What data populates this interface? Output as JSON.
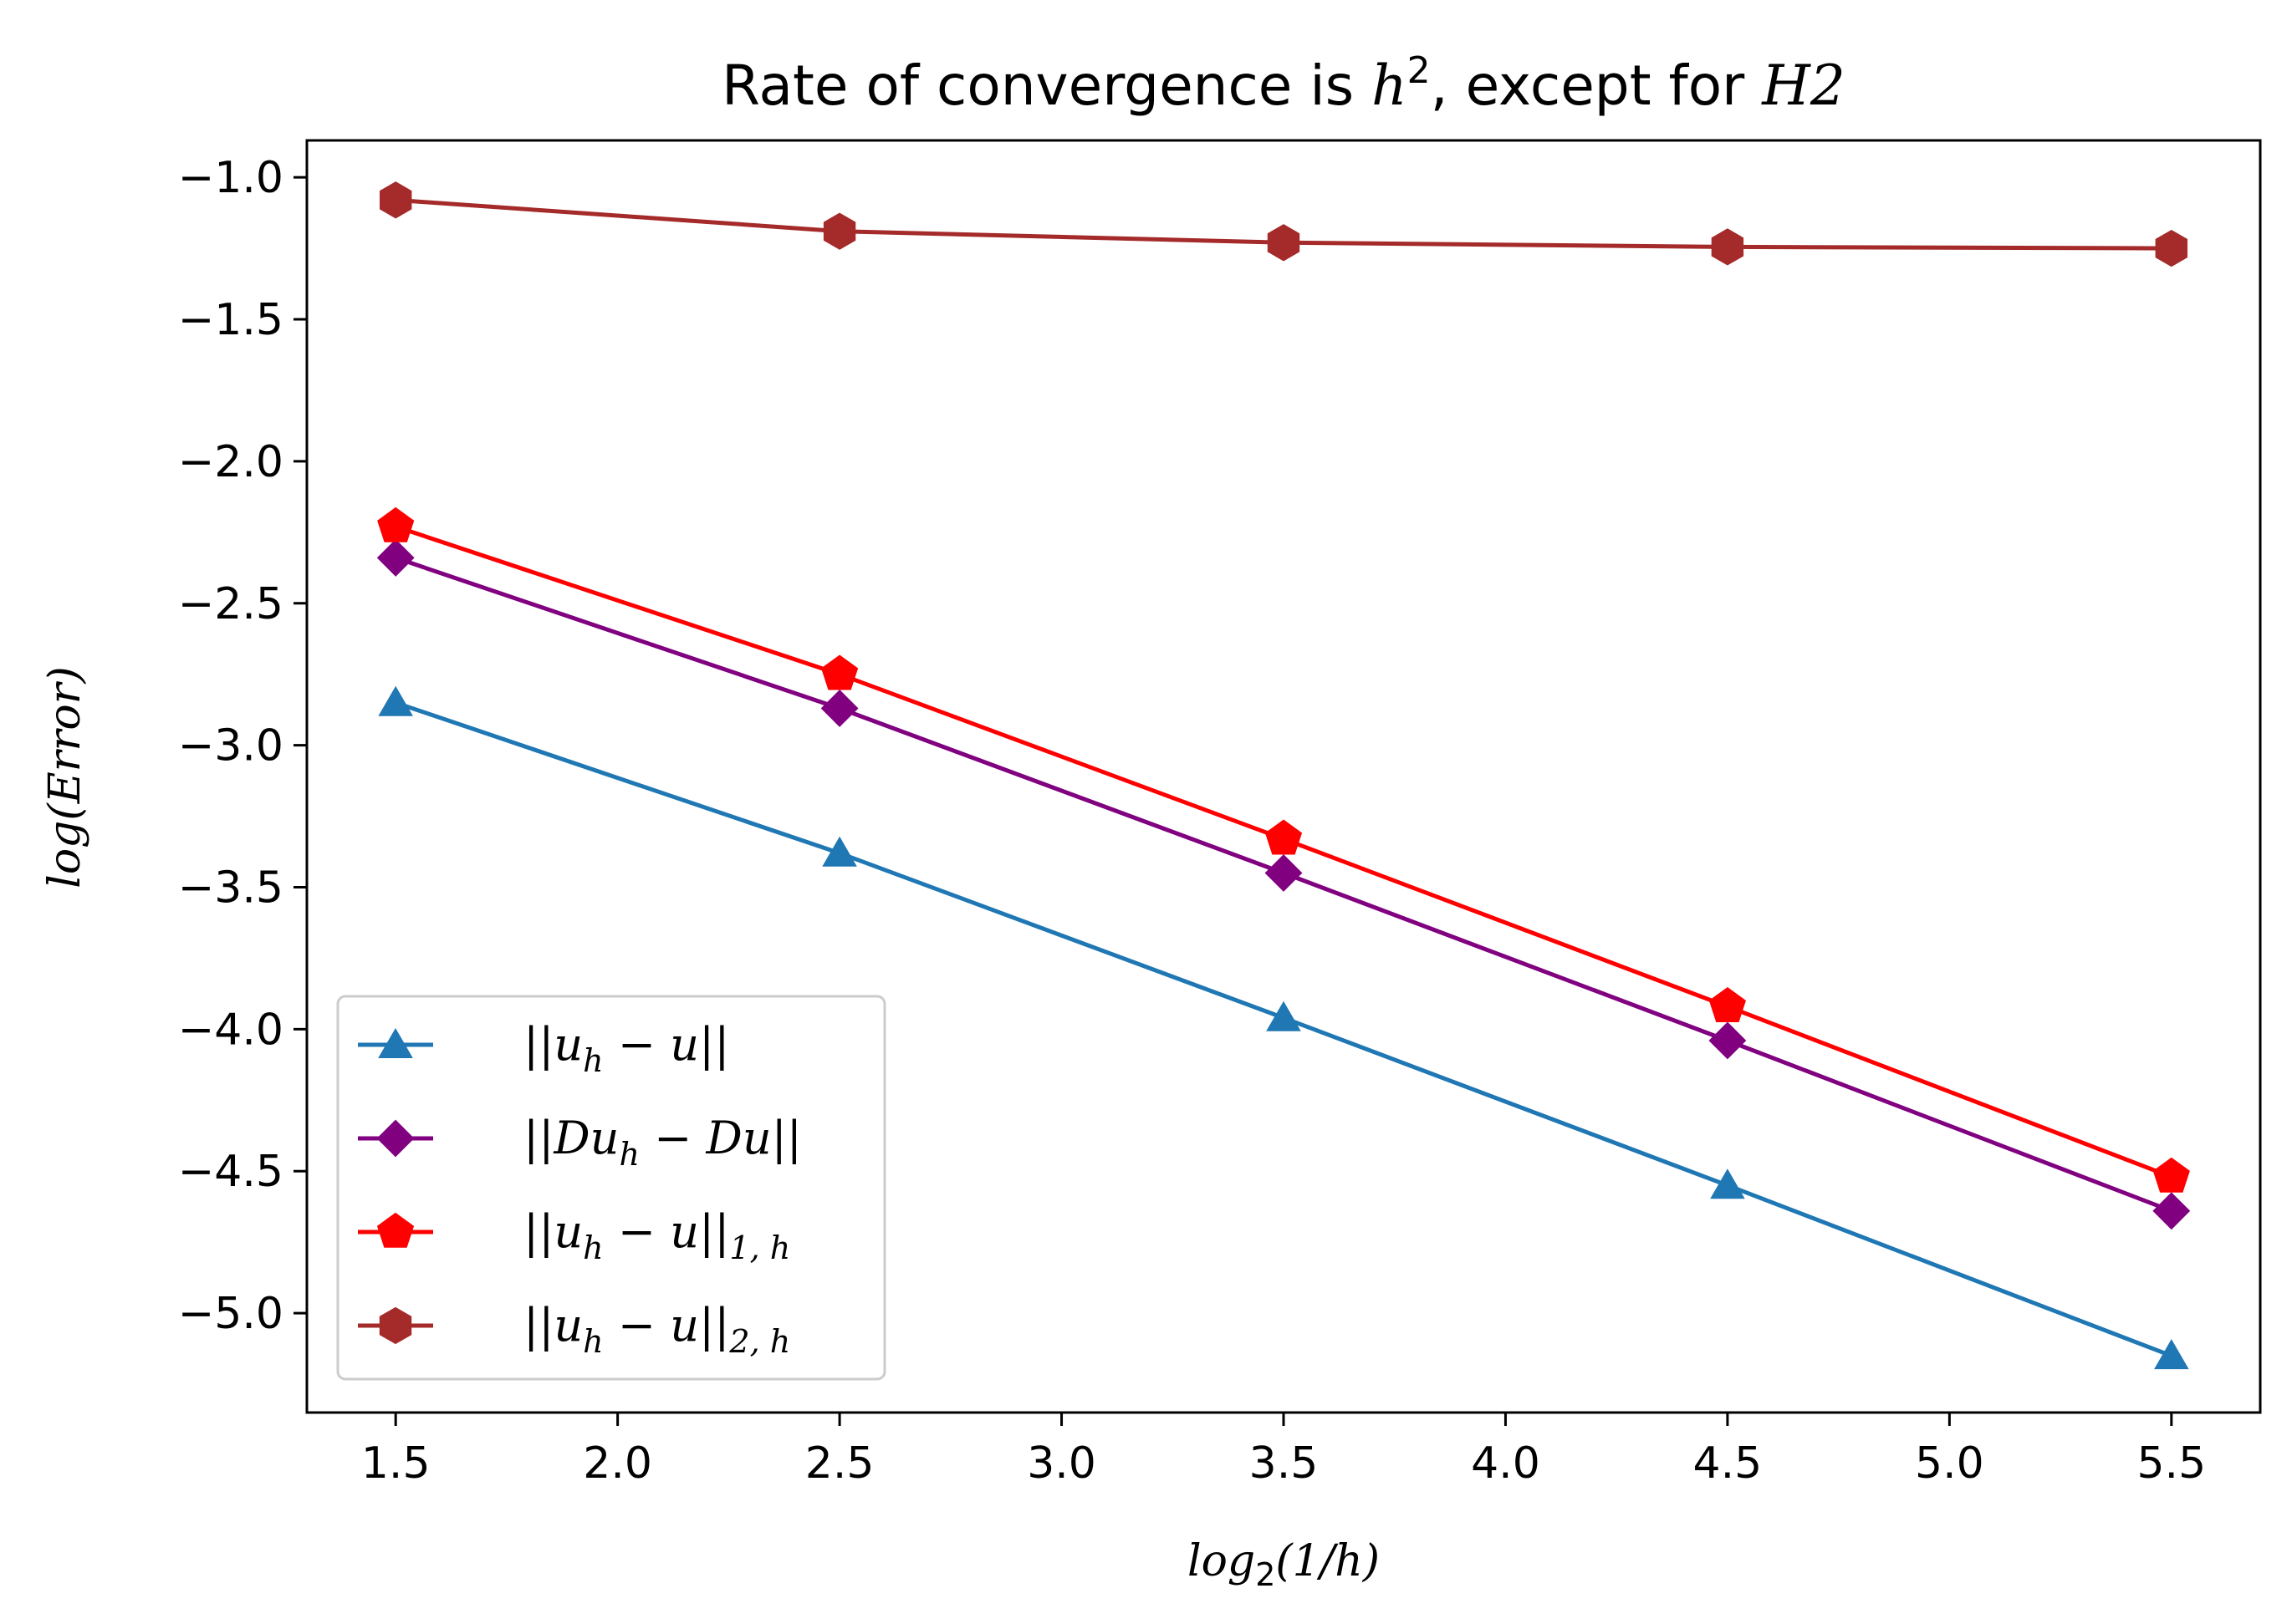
{
  "chart_data": {
    "type": "line",
    "title": {
      "prefix": "Rate of convergence is ",
      "h": "h",
      "exp": "2",
      "middle": ", except for ",
      "last": "H2"
    },
    "xlabel": {
      "log": "log",
      "sub": "2",
      "rest": "(1/h)"
    },
    "ylabel": "log(Error)",
    "x": [
      1.5,
      2.5,
      3.5,
      4.5,
      5.5
    ],
    "xlim": [
      1.3,
      5.7
    ],
    "ylim": [
      -5.35,
      -0.87
    ],
    "xticks": [
      "1.5",
      "2.0",
      "2.5",
      "3.0",
      "3.5",
      "4.0",
      "4.5",
      "5.0",
      "5.5"
    ],
    "yticks": [
      "−1.0",
      "−1.5",
      "−2.0",
      "−2.5",
      "−3.0",
      "−3.5",
      "−4.0",
      "−4.5",
      "−5.0"
    ],
    "grid": false,
    "legend_position": "lower-left",
    "series": [
      {
        "name": "||u_h − u||",
        "marker": "triangle",
        "color": "#1f77b4",
        "values": [
          -2.85,
          -3.38,
          -3.96,
          -4.55,
          -5.15
        ],
        "legend": {
          "a": "||u",
          "sub": "h",
          "b": " − u||",
          "sub2": ""
        }
      },
      {
        "name": "||Du_h − Du||",
        "marker": "diamond",
        "color": "#800080",
        "values": [
          -2.34,
          -2.87,
          -3.45,
          -4.04,
          -4.64
        ],
        "legend": {
          "a": "||Du",
          "sub": "h",
          "b": " − Du||",
          "sub2": ""
        }
      },
      {
        "name": "||u_h − u||_{1,h}",
        "marker": "pentagon",
        "color": "#ff0000",
        "values": [
          -2.23,
          -2.75,
          -3.33,
          -3.92,
          -4.52
        ],
        "legend": {
          "a": "||u",
          "sub": "h",
          "b": " − u||",
          "sub2": "1, h"
        }
      },
      {
        "name": "||u_h − u||_{2,h}",
        "marker": "hexagon",
        "color": "#a52a2a",
        "values": [
          -1.08,
          -1.19,
          -1.23,
          -1.245,
          -1.25
        ],
        "legend": {
          "a": "||u",
          "sub": "h",
          "b": " − u||",
          "sub2": "2, h"
        }
      }
    ]
  }
}
